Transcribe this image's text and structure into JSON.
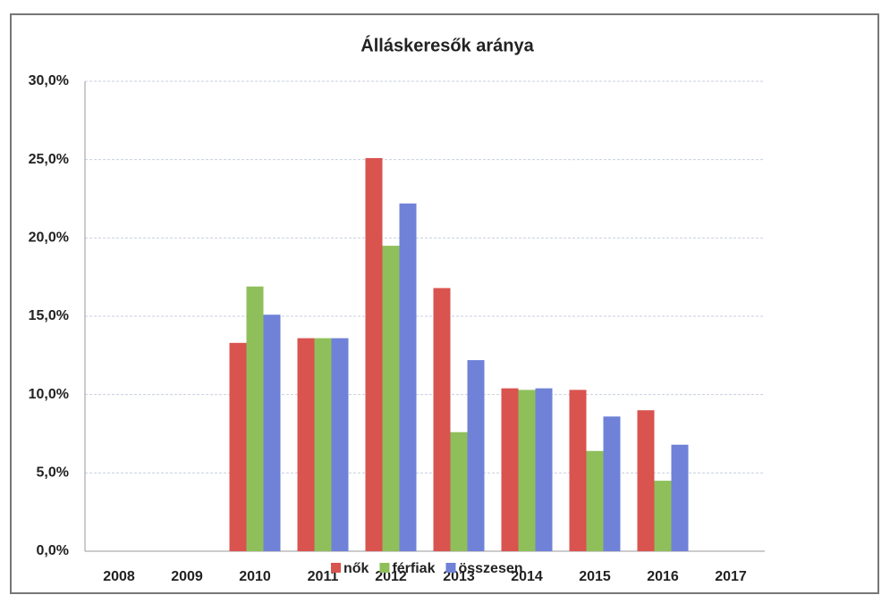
{
  "chart_data": {
    "type": "bar",
    "title": "Álláskeresők aránya",
    "categories": [
      "2008",
      "2009",
      "2010",
      "2011",
      "2012",
      "2013",
      "2014",
      "2015",
      "2016",
      "2017"
    ],
    "series": [
      {
        "name": "nők",
        "color": "#d9534f",
        "values": [
          null,
          null,
          13.3,
          13.6,
          25.1,
          16.8,
          10.4,
          10.3,
          9.0,
          null
        ]
      },
      {
        "name": "férfiak",
        "color": "#8fbf5a",
        "values": [
          null,
          null,
          16.9,
          13.6,
          19.5,
          7.6,
          10.3,
          6.4,
          4.5,
          null
        ]
      },
      {
        "name": "összesen",
        "color": "#6f82d8",
        "values": [
          null,
          null,
          15.1,
          13.6,
          22.2,
          12.2,
          10.4,
          8.6,
          6.8,
          null
        ]
      }
    ],
    "ylim": [
      0,
      30
    ],
    "yticks": [
      {
        "value": 0,
        "label": "0,0%"
      },
      {
        "value": 5,
        "label": "5,0%"
      },
      {
        "value": 10,
        "label": "10,0%"
      },
      {
        "value": 15,
        "label": "15,0%"
      },
      {
        "value": 20,
        "label": "20,0%"
      },
      {
        "value": 25,
        "label": "25,0%"
      },
      {
        "value": 30,
        "label": "30,0%"
      }
    ],
    "grid": true,
    "legend": "bottom"
  }
}
